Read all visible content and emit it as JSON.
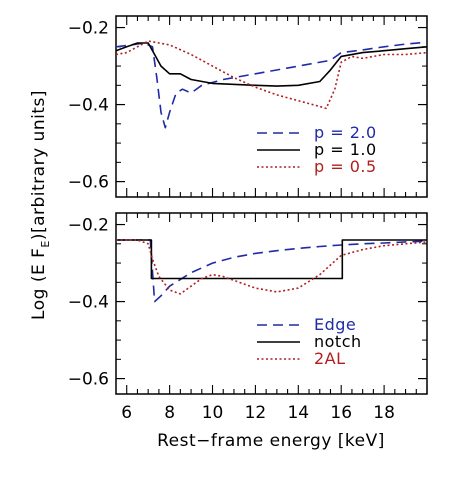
{
  "chart_data": [
    {
      "type": "line",
      "panel": "top",
      "xlabel": "",
      "ylabel": "",
      "xlim": [
        5.5,
        20
      ],
      "ylim": [
        -0.64,
        -0.17
      ],
      "y_ticks": [
        -0.2,
        -0.4,
        -0.6
      ],
      "y_tick_labels": [
        "−0.2",
        "−0.4",
        "−0.6"
      ],
      "grid": false,
      "legend_placement": "bottom-right",
      "series": [
        {
          "name": "p = 2.0",
          "color": "#1f2ba6",
          "dash": "long-dash",
          "x": [
            5.5,
            6.2,
            6.8,
            7.2,
            7.4,
            7.6,
            7.8,
            8.0,
            8.3,
            8.6,
            9.0,
            9.5,
            10.5,
            12,
            14,
            15.5,
            16,
            17,
            18,
            19,
            20
          ],
          "y": [
            -0.25,
            -0.245,
            -0.24,
            -0.25,
            -0.33,
            -0.42,
            -0.46,
            -0.42,
            -0.37,
            -0.36,
            -0.37,
            -0.35,
            -0.335,
            -0.32,
            -0.3,
            -0.285,
            -0.265,
            -0.258,
            -0.25,
            -0.243,
            -0.238
          ]
        },
        {
          "name": "p = 1.0",
          "color": "#000000",
          "dash": "solid",
          "x": [
            5.5,
            6.0,
            6.5,
            7.0,
            7.3,
            7.6,
            8.0,
            8.5,
            9.0,
            10,
            12,
            13,
            14,
            15,
            15.5,
            16,
            17,
            18,
            19,
            20
          ],
          "y": [
            -0.26,
            -0.25,
            -0.24,
            -0.24,
            -0.27,
            -0.3,
            -0.32,
            -0.32,
            -0.335,
            -0.345,
            -0.35,
            -0.352,
            -0.35,
            -0.34,
            -0.31,
            -0.275,
            -0.265,
            -0.26,
            -0.255,
            -0.25
          ]
        },
        {
          "name": "p = 0.5",
          "color": "#b21e1e",
          "dash": "dotted",
          "x": [
            5.5,
            6.0,
            6.5,
            7.0,
            7.5,
            8.0,
            9.0,
            10,
            11,
            12,
            13,
            14,
            15,
            15.3,
            15.7,
            16.0,
            16.5,
            17,
            17.5,
            18,
            19,
            20
          ],
          "y": [
            -0.27,
            -0.265,
            -0.25,
            -0.235,
            -0.24,
            -0.245,
            -0.27,
            -0.3,
            -0.33,
            -0.355,
            -0.375,
            -0.39,
            -0.405,
            -0.41,
            -0.36,
            -0.29,
            -0.275,
            -0.28,
            -0.275,
            -0.27,
            -0.27,
            -0.265
          ]
        }
      ]
    },
    {
      "type": "line",
      "panel": "bottom",
      "xlabel": "Rest−frame energy [keV]",
      "ylabel": "Log (E F",
      "ylabel_sub": "E",
      "ylabel_rest": ")[arbitrary units]",
      "xlim": [
        5.5,
        20
      ],
      "ylim": [
        -0.64,
        -0.17
      ],
      "x_ticks": [
        6,
        8,
        10,
        12,
        14,
        16,
        18
      ],
      "x_tick_labels": [
        "6",
        "8",
        "10",
        "12",
        "14",
        "16",
        "18"
      ],
      "y_ticks": [
        -0.2,
        -0.4,
        -0.6
      ],
      "y_tick_labels": [
        "−0.2",
        "−0.4",
        "−0.6"
      ],
      "grid": false,
      "legend_placement": "bottom-right",
      "series": [
        {
          "name": "Edge",
          "color": "#1f2ba6",
          "dash": "long-dash",
          "x": [
            5.5,
            6.5,
            7.0,
            7.1,
            7.3,
            7.6,
            8.0,
            9.0,
            10,
            11,
            12,
            13,
            14,
            15,
            16,
            17,
            18,
            19,
            20
          ],
          "y": [
            -0.24,
            -0.24,
            -0.24,
            -0.24,
            -0.4,
            -0.385,
            -0.36,
            -0.325,
            -0.3,
            -0.285,
            -0.275,
            -0.268,
            -0.262,
            -0.257,
            -0.253,
            -0.25,
            -0.248,
            -0.245,
            -0.243
          ]
        },
        {
          "name": "notch",
          "color": "#000000",
          "dash": "solid",
          "x": [
            5.5,
            7.15,
            7.15,
            16.05,
            16.05,
            20
          ],
          "y": [
            -0.24,
            -0.24,
            -0.34,
            -0.34,
            -0.24,
            -0.24
          ]
        },
        {
          "name": "2AL",
          "color": "#b21e1e",
          "dash": "dotted",
          "x": [
            5.5,
            6.5,
            7.0,
            7.2,
            7.5,
            8.0,
            8.5,
            9.0,
            9.5,
            10.0,
            10.5,
            11,
            12,
            13,
            14,
            15,
            16,
            17,
            18,
            19,
            20
          ],
          "y": [
            -0.24,
            -0.24,
            -0.25,
            -0.29,
            -0.335,
            -0.37,
            -0.38,
            -0.36,
            -0.34,
            -0.33,
            -0.335,
            -0.345,
            -0.365,
            -0.375,
            -0.365,
            -0.33,
            -0.28,
            -0.265,
            -0.255,
            -0.25,
            -0.245
          ]
        }
      ]
    }
  ]
}
